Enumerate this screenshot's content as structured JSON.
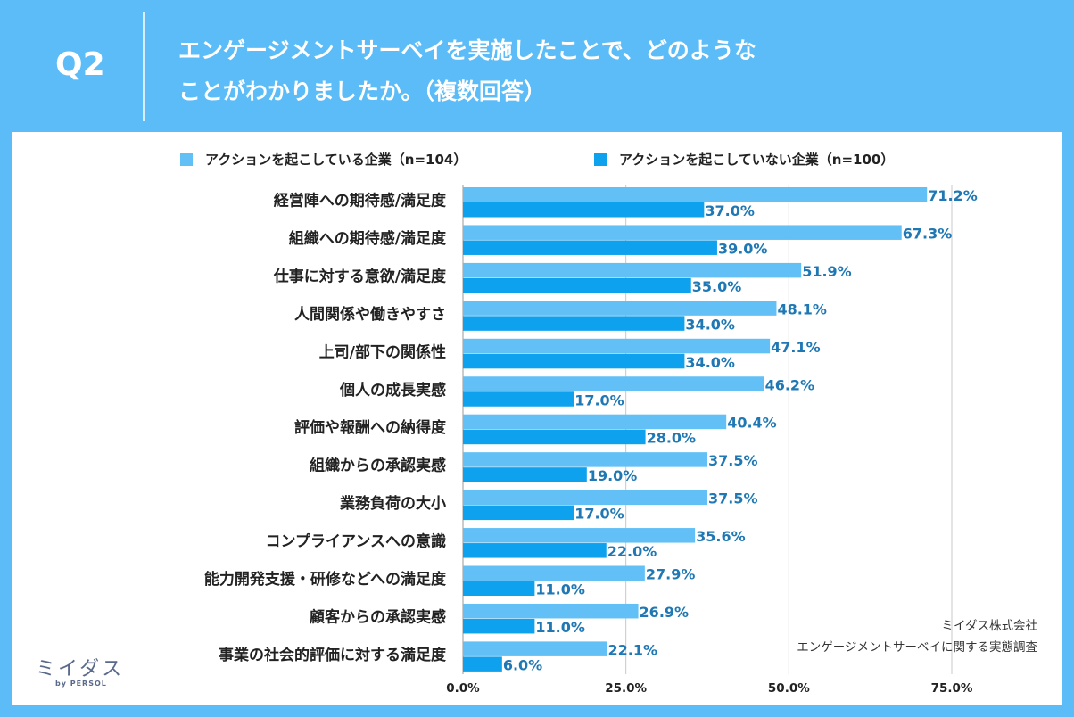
{
  "header": {
    "q_label": "Q2",
    "title_line1": "エンゲージメントサーベイを実施したことで、どのような",
    "title_line2": "ことがわかりましたか。（複数回答）"
  },
  "legend": {
    "series1": "アクションを起こしている企業（n=104）",
    "series2": "アクションを起こしていない企業（n=100）"
  },
  "source": {
    "line1": "ミイダス株式会社",
    "line2": "エンゲージメントサーベイに関する実態調査"
  },
  "brand": {
    "name": "ミイダス",
    "by": "by PERSOL"
  },
  "colors": {
    "background": "#5bbcf7",
    "series1": "#62c0f7",
    "series2": "#0ea2ee",
    "value_label": "#1f78b4"
  },
  "chart_data": {
    "type": "bar",
    "orientation": "horizontal",
    "title": "エンゲージメントサーベイを実施したことで、どのようなことがわかりましたか。（複数回答）",
    "xlim": [
      0,
      75
    ],
    "ticks": [
      "0.0%",
      "25.0%",
      "50.0%",
      "75.0%"
    ],
    "tick_values": [
      0,
      25,
      50,
      75
    ],
    "categories": [
      "経営陣への期待感/満足度",
      "組織への期待感/満足度",
      "仕事に対する意欲/満足度",
      "人間関係や働きやすさ",
      "上司/部下の関係性",
      "個人の成長実感",
      "評価や報酬への納得度",
      "組織からの承認実感",
      "業務負荷の大小",
      "コンプライアンスへの意識",
      "能力開発支援・研修などへの満足度",
      "顧客からの承認実感",
      "事業の社会的評価に対する満足度"
    ],
    "series": [
      {
        "name": "アクションを起こしている企業（n=104）",
        "values": [
          71.2,
          67.3,
          51.9,
          48.1,
          47.1,
          46.2,
          40.4,
          37.5,
          37.5,
          35.6,
          27.9,
          26.9,
          22.1
        ],
        "labels": [
          "71.2%",
          "67.3%",
          "51.9%",
          "48.1%",
          "47.1%",
          "46.2%",
          "40.4%",
          "37.5%",
          "37.5%",
          "35.6%",
          "27.9%",
          "26.9%",
          "22.1%"
        ]
      },
      {
        "name": "アクションを起こしていない企業（n=100）",
        "values": [
          37.0,
          39.0,
          35.0,
          34.0,
          34.0,
          17.0,
          28.0,
          19.0,
          17.0,
          22.0,
          11.0,
          11.0,
          6.0
        ],
        "labels": [
          "37.0%",
          "39.0%",
          "35.0%",
          "34.0%",
          "34.0%",
          "17.0%",
          "28.0%",
          "19.0%",
          "17.0%",
          "22.0%",
          "11.0%",
          "11.0%",
          "6.0%"
        ]
      }
    ]
  }
}
